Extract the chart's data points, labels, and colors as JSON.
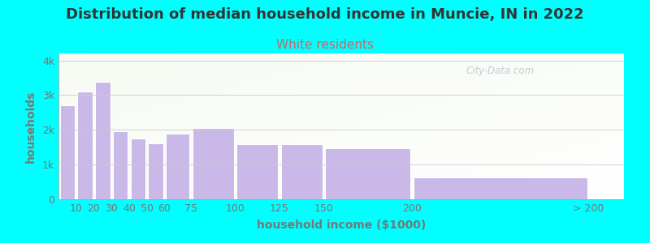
{
  "title": "Distribution of median household income in Muncie, IN in 2022",
  "subtitle": "White residents",
  "xlabel": "household income ($1000)",
  "ylabel": "households",
  "background_color": "#00FFFF",
  "bar_color": "#c9b8e8",
  "bar_edge_color": "#ffffff",
  "yticks": [
    0,
    1000,
    2000,
    3000,
    4000
  ],
  "ytick_labels": [
    "0",
    "1k",
    "2k",
    "3k",
    "4k"
  ],
  "ylim": [
    0,
    4200
  ],
  "title_fontsize": 13,
  "subtitle_fontsize": 11,
  "subtitle_color": "#cc6666",
  "title_color": "#333333",
  "axis_label_fontsize": 10,
  "tick_fontsize": 9,
  "tick_color": "#777777",
  "watermark_text": "City-Data.com",
  "watermark_color": "#b0c8d0",
  "bar_left_edges": [
    0,
    10,
    20,
    30,
    40,
    50,
    60,
    75,
    100,
    125,
    150,
    200
  ],
  "bar_right_edges": [
    10,
    20,
    30,
    40,
    50,
    60,
    75,
    100,
    125,
    150,
    200,
    300
  ],
  "bar_values": [
    2700,
    3100,
    3380,
    1960,
    1760,
    1620,
    1880,
    2050,
    1580,
    1580,
    1470,
    620
  ],
  "xtick_positions": [
    10,
    20,
    30,
    40,
    50,
    60,
    75,
    100,
    125,
    150,
    200,
    300
  ],
  "xtick_labels": [
    "10",
    "20",
    "30",
    "40",
    "50",
    "60",
    "75",
    "100",
    "125",
    "150",
    "200",
    "> 200"
  ],
  "xlim": [
    0,
    320
  ]
}
